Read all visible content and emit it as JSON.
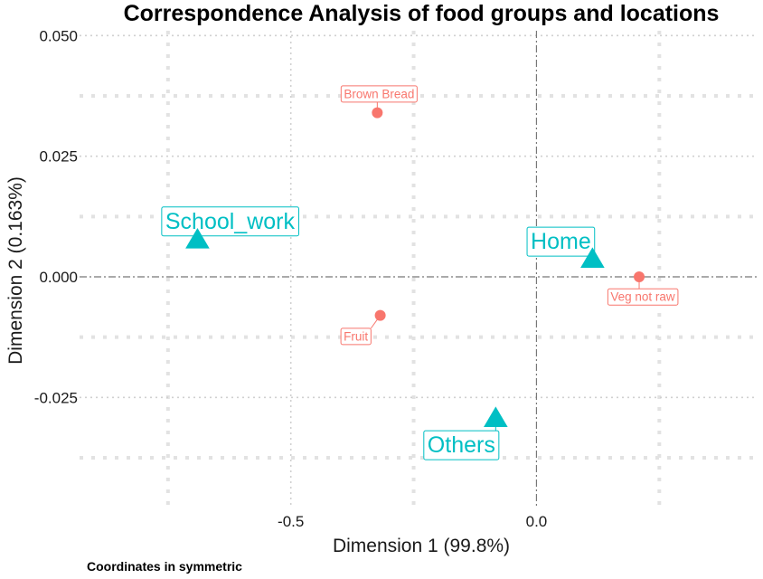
{
  "chart_data": {
    "type": "scatter",
    "title": "Correspondence Analysis of food groups and locations",
    "xlabel": "Dimension 1 (99.8%)",
    "ylabel": "Dimension 2 (0.163%)",
    "caption": "Coordinates in symmetric",
    "xlim": [
      -0.93,
      0.45
    ],
    "ylim": [
      -0.048,
      0.051
    ],
    "xticks": [
      -0.5,
      0.0
    ],
    "xtick_labels": [
      "-0.5",
      "0.0"
    ],
    "yticks": [
      -0.025,
      0.0,
      0.025,
      0.05
    ],
    "ytick_labels": [
      "-0.025",
      "0.000",
      "0.025",
      "0.050"
    ],
    "grid": true,
    "reference_lines": {
      "x": 0,
      "y": 0
    },
    "series": [
      {
        "color": "#F8766D",
        "marker": "circle",
        "points": [
          {
            "label": "Brown Bread",
            "x": -0.324,
            "y": 0.034
          },
          {
            "label": "Veg not raw",
            "x": 0.209,
            "y": 0.0
          },
          {
            "label": "Fruit",
            "x": -0.318,
            "y": -0.008
          }
        ]
      },
      {
        "color": "#00BFC4",
        "marker": "triangle",
        "points": [
          {
            "label": "School_work",
            "x": -0.69,
            "y": 0.0075
          },
          {
            "label": "Home",
            "x": 0.114,
            "y": 0.0035
          },
          {
            "label": "Others",
            "x": -0.083,
            "y": -0.0295
          }
        ]
      }
    ]
  }
}
